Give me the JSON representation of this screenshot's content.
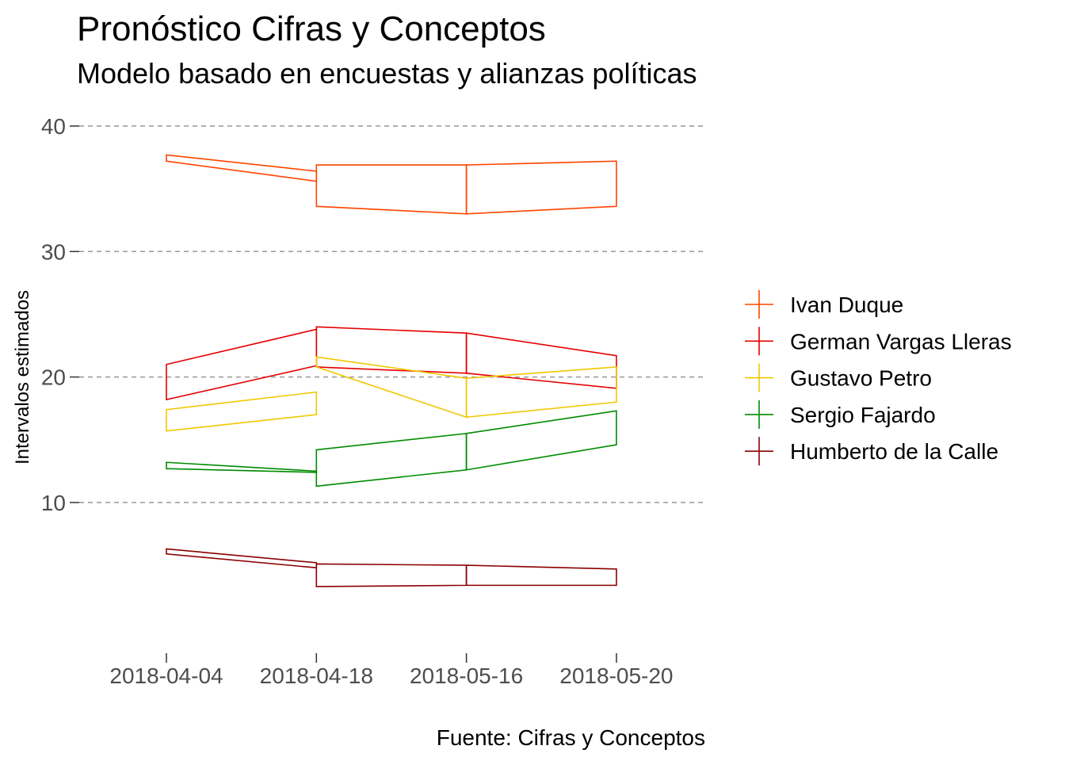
{
  "chart_data": {
    "type": "line",
    "title": "Pronóstico Cifras y Conceptos",
    "subtitle": "Modelo basado en encuestas y alianzas políticas",
    "caption": "Fuente: Cifras y Conceptos",
    "xlabel": "",
    "ylabel": "Intervalos estimados",
    "categories": [
      "2018-04-04",
      "2018-04-18",
      "2018-05-16",
      "2018-05-20"
    ],
    "y_ticks": [
      10,
      20,
      30,
      40
    ],
    "ylim": [
      -1.7,
      41
    ],
    "grid": "horizontal dashed",
    "legend_position": "right",
    "series": [
      {
        "name": "Ivan Duque",
        "color": "#FF4500",
        "segments": [
          {
            "from": 0,
            "to": 1,
            "upper": [
              37.7,
              36.4
            ],
            "lower": [
              37.2,
              35.6
            ]
          },
          {
            "from": 1,
            "to": 2,
            "upper": [
              36.9,
              36.9
            ],
            "lower": [
              33.6,
              33.0
            ]
          },
          {
            "from": 2,
            "to": 3,
            "upper": [
              36.9,
              37.2
            ],
            "lower": [
              33.0,
              33.6
            ]
          }
        ]
      },
      {
        "name": "German Vargas Lleras",
        "color": "#E60000",
        "segments": [
          {
            "from": 0,
            "to": 1,
            "upper": [
              21.0,
              23.8
            ],
            "lower": [
              18.2,
              20.9
            ]
          },
          {
            "from": 1,
            "to": 2,
            "upper": [
              24.0,
              23.5
            ],
            "lower": [
              20.8,
              20.3
            ]
          },
          {
            "from": 2,
            "to": 3,
            "upper": [
              23.5,
              21.7
            ],
            "lower": [
              20.3,
              19.1
            ]
          }
        ]
      },
      {
        "name": "Gustavo Petro",
        "color": "#F0C800",
        "segments": [
          {
            "from": 0,
            "to": 1,
            "upper": [
              17.4,
              18.8
            ],
            "lower": [
              15.7,
              17.0
            ]
          },
          {
            "from": 1,
            "to": 2,
            "upper": [
              21.6,
              19.9
            ],
            "lower": [
              20.8,
              16.8
            ]
          },
          {
            "from": 2,
            "to": 3,
            "upper": [
              19.9,
              20.8
            ],
            "lower": [
              16.8,
              18.0
            ]
          }
        ]
      },
      {
        "name": "Sergio Fajardo",
        "color": "#008B00",
        "segments": [
          {
            "from": 0,
            "to": 1,
            "upper": [
              13.2,
              12.5
            ],
            "lower": [
              12.7,
              12.4
            ]
          },
          {
            "from": 1,
            "to": 2,
            "upper": [
              14.2,
              15.5
            ],
            "lower": [
              11.3,
              12.6
            ]
          },
          {
            "from": 2,
            "to": 3,
            "upper": [
              15.5,
              17.3
            ],
            "lower": [
              12.6,
              14.6
            ]
          }
        ]
      },
      {
        "name": "Humberto de la Calle",
        "color": "#8B0000",
        "segments": [
          {
            "from": 0,
            "to": 1,
            "upper": [
              6.3,
              5.2
            ],
            "lower": [
              5.9,
              4.8
            ]
          },
          {
            "from": 1,
            "to": 2,
            "upper": [
              5.1,
              5.0
            ],
            "lower": [
              3.3,
              3.4
            ]
          },
          {
            "from": 2,
            "to": 3,
            "upper": [
              5.0,
              4.7
            ],
            "lower": [
              3.4,
              3.4
            ]
          }
        ]
      }
    ]
  }
}
